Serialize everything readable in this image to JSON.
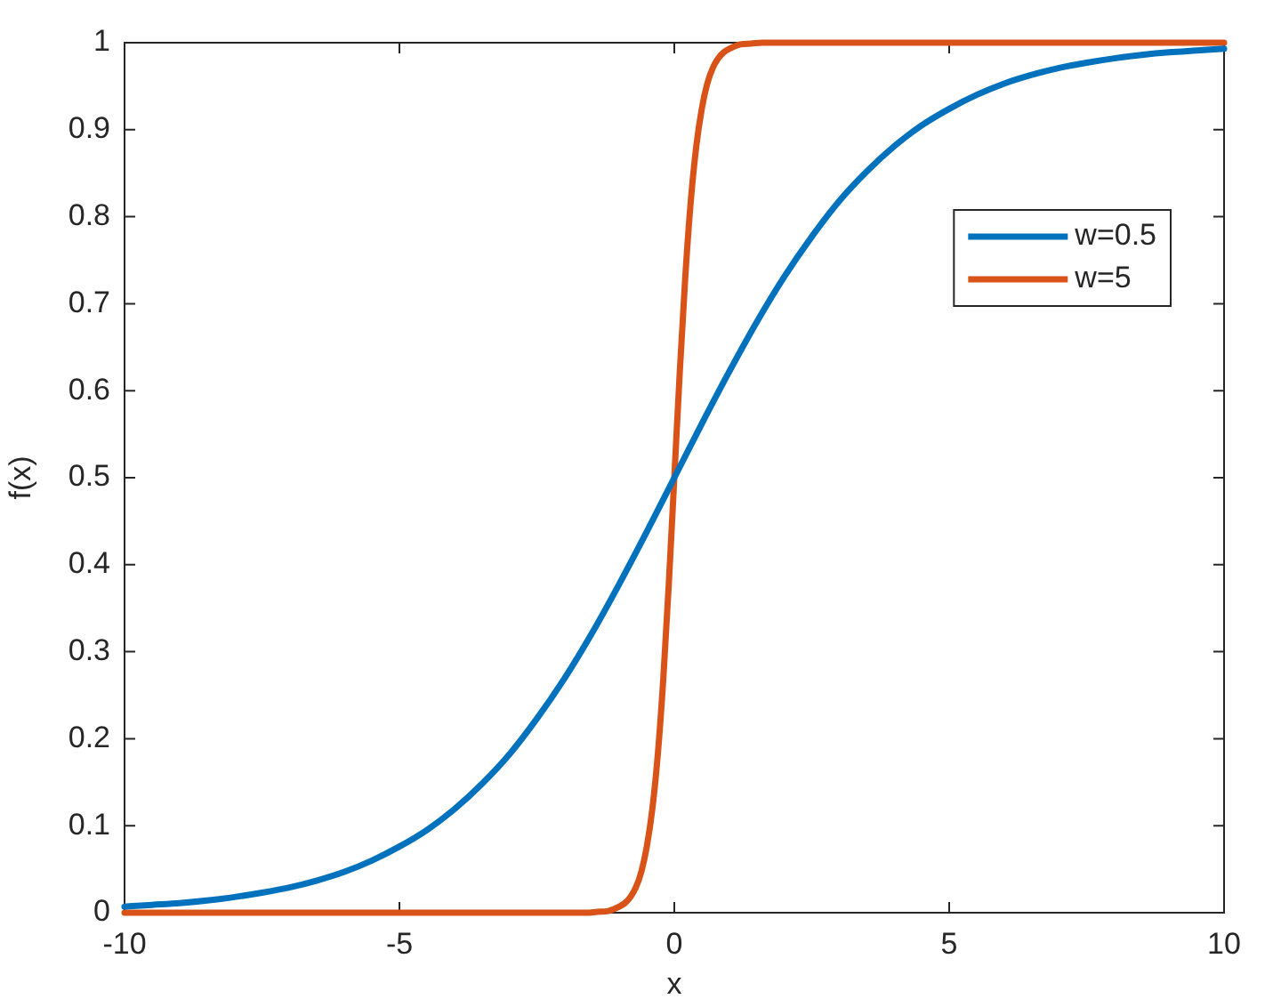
{
  "chart_data": {
    "type": "line",
    "xlabel": "x",
    "ylabel": "f(x)",
    "xlim": [
      -10,
      10
    ],
    "ylim": [
      0,
      1
    ],
    "xticks": [
      -10,
      -5,
      0,
      5,
      10
    ],
    "yticks": [
      0,
      0.1,
      0.2,
      0.3,
      0.4,
      0.5,
      0.6,
      0.7,
      0.8,
      0.9,
      1
    ],
    "legend": "top right",
    "series": [
      {
        "name": "w=0.5",
        "color": "#0072bd",
        "x": [
          -10,
          -9.5,
          -9,
          -8.5,
          -8,
          -7.5,
          -7,
          -6.5,
          -6,
          -5.5,
          -5,
          -4.5,
          -4,
          -3.5,
          -3,
          -2.5,
          -2,
          -1.5,
          -1,
          -0.5,
          0,
          0.5,
          1,
          1.5,
          2,
          2.5,
          3,
          3.5,
          4,
          4.5,
          5,
          5.5,
          6,
          6.5,
          7,
          7.5,
          8,
          8.5,
          9,
          9.5,
          10
        ],
        "values": [
          0.007,
          0.009,
          0.011,
          0.014,
          0.018,
          0.023,
          0.029,
          0.037,
          0.047,
          0.06,
          0.076,
          0.095,
          0.119,
          0.148,
          0.182,
          0.223,
          0.269,
          0.321,
          0.378,
          0.438,
          0.5,
          0.562,
          0.622,
          0.679,
          0.731,
          0.777,
          0.818,
          0.852,
          0.881,
          0.905,
          0.924,
          0.94,
          0.953,
          0.963,
          0.971,
          0.977,
          0.982,
          0.986,
          0.989,
          0.991,
          0.993
        ]
      },
      {
        "name": "w=5",
        "color": "#d95319",
        "x": [
          -10,
          -8,
          -6,
          -4,
          -3,
          -2,
          -1.6,
          -1.4,
          -1.2,
          -1,
          -0.9,
          -0.8,
          -0.7,
          -0.6,
          -0.5,
          -0.4,
          -0.3,
          -0.2,
          -0.1,
          0,
          0.1,
          0.2,
          0.3,
          0.4,
          0.5,
          0.6,
          0.7,
          0.8,
          0.9,
          1,
          1.2,
          1.4,
          1.6,
          2,
          3,
          4,
          6,
          8,
          10
        ],
        "values": [
          0,
          0,
          0,
          0,
          0,
          0,
          0,
          0.001,
          0.002,
          0.007,
          0.011,
          0.018,
          0.029,
          0.047,
          0.076,
          0.119,
          0.182,
          0.269,
          0.378,
          0.5,
          0.622,
          0.731,
          0.818,
          0.881,
          0.924,
          0.953,
          0.971,
          0.982,
          0.989,
          0.993,
          0.998,
          0.999,
          1,
          1,
          1,
          1,
          1,
          1,
          1
        ]
      }
    ]
  }
}
